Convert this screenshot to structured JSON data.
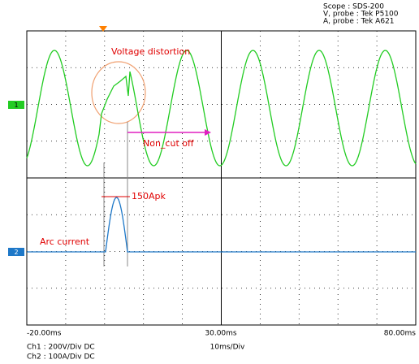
{
  "header": {
    "lines": [
      "Scope : SDS-200",
      "V, probe : Tek P5100",
      "A, probe : Tek A621"
    ]
  },
  "markers": {
    "channel1": "1",
    "channel2": "2"
  },
  "annotations": {
    "distortion": "Voltage distortion",
    "non_cut": "Non_cut off",
    "peak": "150Apk",
    "arc": "Arc current"
  },
  "time_axis": {
    "left": "-20.00ms",
    "center": "30.00ms",
    "right": "80.00ms",
    "scale": "10ms/Div"
  },
  "footer": {
    "ch1": "Ch1 : 200V/Div  DC",
    "ch2": "Ch2 : 100A/Div  DC"
  }
}
